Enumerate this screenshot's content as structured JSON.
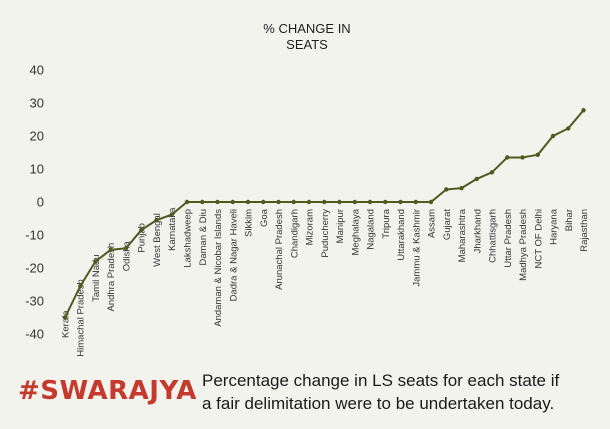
{
  "brand": {
    "logo_text": "#SWARAJYA"
  },
  "caption": {
    "line1": "Percentage change in LS seats for each state if",
    "line2": "a fair delimitation were to be undertaken today."
  },
  "colors": {
    "line": "#4e5a1e",
    "brand": "#c43a2c",
    "background": "#f3f3ee"
  },
  "chart_data": {
    "type": "line",
    "title_lines": [
      "% CHANGE IN",
      "SEATS"
    ],
    "xlabel": "",
    "ylabel": "",
    "ylim": [
      -40,
      40
    ],
    "yticks": [
      40,
      30,
      20,
      10,
      0,
      -10,
      -20,
      -30,
      -40
    ],
    "grid": false,
    "legend": "none",
    "categories": [
      "Kerala",
      "Himachal Pradesh",
      "Tamil Nadu",
      "Andhra Pradesh",
      "Odisha",
      "Punjab",
      "West Bengal",
      "Karnataka",
      "Lakshadweep",
      "Daman & Diu",
      "Andaman & Nicobar Islands",
      "Dadra & Nagar Haveli",
      "Sikkim",
      "Goa",
      "Arunachal Pradesh",
      "Chandigarh",
      "Mizoram",
      "Puducherry",
      "Manipur",
      "Meghalaya",
      "Nagaland",
      "Tripura",
      "Uttarakhand",
      "Jammu & Kashmir",
      "Assam",
      "Gujarat",
      "Maharashtra",
      "Jharkhand",
      "Chhattisgarh",
      "Uttar Pradesh",
      "Madhya Pradesh",
      "NCT OF Delhi",
      "Haryana",
      "Bihar",
      "Rajasthan"
    ],
    "series": [
      {
        "values": [
          -35,
          -25.5,
          -18,
          -14.5,
          -14,
          -8.5,
          -5.5,
          -3.8,
          0,
          0,
          0,
          0,
          0,
          0,
          0,
          0,
          0,
          0,
          0,
          0,
          0,
          0,
          0,
          0,
          0,
          3.8,
          4.2,
          7,
          9,
          13.5,
          13.5,
          14.3,
          20,
          22.3,
          27.8
        ]
      }
    ]
  }
}
